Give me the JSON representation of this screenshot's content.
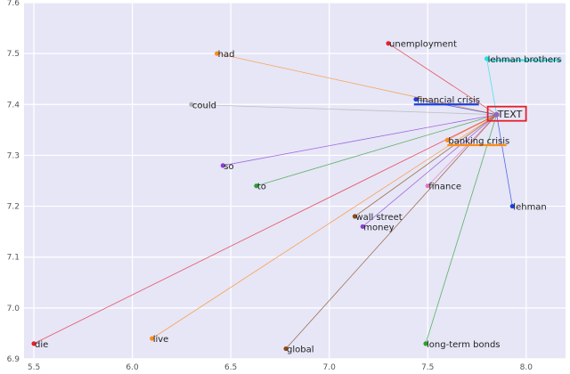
{
  "chart_data": {
    "type": "scatter",
    "title": "",
    "xlabel": "",
    "ylabel": "",
    "xlim": [
      5.45,
      8.2
    ],
    "ylim": [
      6.9,
      7.6
    ],
    "xticks": [
      5.5,
      6.0,
      6.5,
      7.0,
      7.5,
      8.0
    ],
    "yticks": [
      6.9,
      7.0,
      7.1,
      7.2,
      7.3,
      7.4,
      7.5,
      7.6
    ],
    "xtick_labels": [
      "5.5",
      "6.0",
      "6.5",
      "7.0",
      "7.5",
      "8.0"
    ],
    "ytick_labels": [
      "6.9",
      "7.0",
      "7.1",
      "7.2",
      "7.3",
      "7.4",
      "7.5",
      "7.6"
    ],
    "grid": true,
    "background": "#e6e6f7",
    "center": {
      "label": "TEXT",
      "x": 7.85,
      "y": 7.38,
      "box_color": "#e8202a"
    },
    "points": [
      {
        "label": "had",
        "x": 6.43,
        "y": 7.5,
        "color": "#ff8c1a"
      },
      {
        "label": "unemployment",
        "x": 7.3,
        "y": 7.52,
        "color": "#e8202a"
      },
      {
        "label": "lehman brothers",
        "x": 7.8,
        "y": 7.49,
        "color": "#22e0e0"
      },
      {
        "label": "could",
        "x": 6.3,
        "y": 7.4,
        "color": "#b0b0b0"
      },
      {
        "label": "financial crisis",
        "x": 7.44,
        "y": 7.41,
        "color": "#1f3fdc"
      },
      {
        "label": "banking crisis",
        "x": 7.6,
        "y": 7.33,
        "color": "#ff8c1a"
      },
      {
        "label": "so",
        "x": 6.46,
        "y": 7.28,
        "color": "#8a3fd0"
      },
      {
        "label": "to",
        "x": 6.63,
        "y": 7.24,
        "color": "#2ca02c"
      },
      {
        "label": "finance",
        "x": 7.5,
        "y": 7.24,
        "color": "#e377c2"
      },
      {
        "label": "lehman",
        "x": 7.93,
        "y": 7.2,
        "color": "#1f3fdc"
      },
      {
        "label": "wall street",
        "x": 7.13,
        "y": 7.18,
        "color": "#8c4a1a"
      },
      {
        "label": "money",
        "x": 7.17,
        "y": 7.16,
        "color": "#8a3fd0"
      },
      {
        "label": "die",
        "x": 5.5,
        "y": 6.93,
        "color": "#e8202a"
      },
      {
        "label": "live",
        "x": 6.1,
        "y": 6.94,
        "color": "#ff8c1a"
      },
      {
        "label": "global",
        "x": 6.78,
        "y": 6.92,
        "color": "#8c4a1a"
      },
      {
        "label": "long-term bonds",
        "x": 7.49,
        "y": 6.93,
        "color": "#2ca02c"
      }
    ],
    "underlines": [
      {
        "label": "lehman brothers",
        "x1": 7.8,
        "x2": 8.18,
        "y": 7.487,
        "color": "#22e0e0"
      },
      {
        "label": "financial crisis",
        "x1": 7.43,
        "x2": 7.76,
        "y": 7.4,
        "color": "#1f3fdc"
      },
      {
        "label": "banking crisis",
        "x1": 7.6,
        "x2": 7.9,
        "y": 7.32,
        "color": "#ff8c1a"
      }
    ]
  }
}
